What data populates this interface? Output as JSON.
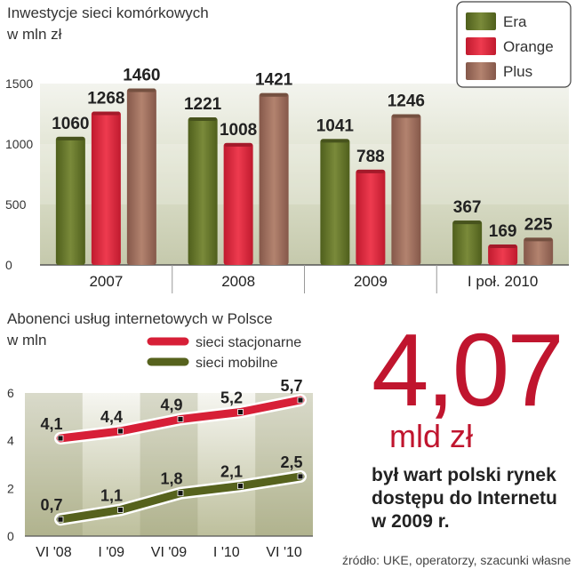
{
  "colors": {
    "era": "#5f6f26",
    "orange": "#d92338",
    "plus": "#9a6a55",
    "stacjonarne": "#d71f37",
    "mobilne": "#56621d",
    "accent": "#c0152e"
  },
  "icon_names": [
    "legend-swatch-icon",
    "line-marker-icon"
  ],
  "chart_data": [
    {
      "type": "bar",
      "title": "Inwestycje sieci komórkowych",
      "subtitle": "w mln zł",
      "categories": [
        "2007",
        "2008",
        "2009",
        "I poł. 2010"
      ],
      "series": [
        {
          "name": "Era",
          "values": [
            1060,
            1221,
            1041,
            367
          ]
        },
        {
          "name": "Orange",
          "values": [
            1268,
            1008,
            788,
            169
          ]
        },
        {
          "name": "Plus",
          "values": [
            1460,
            1421,
            1246,
            225
          ]
        }
      ],
      "data_labels": [
        [
          "1060",
          "1268",
          "1460"
        ],
        [
          "1221",
          "1008",
          "1421"
        ],
        [
          "1041",
          "788",
          "1246"
        ],
        [
          "367",
          "169",
          "225"
        ]
      ],
      "yticks": [
        "0",
        "500",
        "1000",
        "1500"
      ],
      "ylim": [
        0,
        1500
      ],
      "grid": false,
      "legend_position": "top-right"
    },
    {
      "type": "line",
      "title": "Abonenci usług internetowych w Polsce",
      "subtitle": "w mln",
      "x": [
        "VI '08",
        "I '09",
        "VI '09",
        "I '10",
        "VI '10"
      ],
      "series": [
        {
          "name": "sieci stacjonarne",
          "values": [
            4.1,
            4.4,
            4.9,
            5.2,
            5.7
          ],
          "labels": [
            "4,1",
            "4,4",
            "4,9",
            "5,2",
            "5,7"
          ]
        },
        {
          "name": "sieci mobilne",
          "values": [
            0.7,
            1.1,
            1.8,
            2.1,
            2.5
          ],
          "labels": [
            "0,7",
            "1,1",
            "1,8",
            "2,1",
            "2,5"
          ]
        }
      ],
      "yticks": [
        "0",
        "2",
        "4",
        "6"
      ],
      "ylim": [
        0,
        6
      ],
      "grid": false,
      "legend_position": "top"
    }
  ],
  "highlight": {
    "value": "4,07",
    "unit": "mld zł",
    "caption": "był wart polski rynek dostępu do Internetu w 2009 r."
  },
  "source": "źródło: UKE, operatorzy, szacunki własne"
}
